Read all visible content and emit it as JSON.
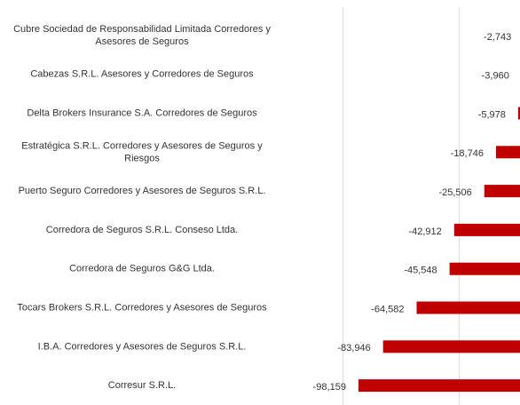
{
  "chart_data": {
    "type": "bar",
    "orientation": "horizontal",
    "categories": [
      "Cubre Sociedad de Responsabilidad Limitada Corredores y Asesores de Seguros",
      "Cabezas S.R.L. Asesores y Corredores de Seguros",
      "Delta Brokers Insurance S.A. Corredores de Seguros",
      "Estratégica S.R.L. Corredores y Asesores de Seguros y Riesgos",
      "Puerto Seguro Corredores y Asesores de Seguros S.R.L.",
      "Corredora de Seguros S.R.L. Conseso Ltda.",
      "Corredora de Seguros G&G Ltda.",
      "Tocars Brokers S.R.L. Corredores y Asesores de Seguros",
      "I.B.A. Corredores y Asesores de Seguros S.R.L.",
      "Corresur S.R.L."
    ],
    "values": [
      -2743,
      -3960,
      -5978,
      -18746,
      -25506,
      -42912,
      -45548,
      -64582,
      -83946,
      -98159
    ],
    "value_labels": [
      "-2,743",
      "-3,960",
      "-5,978",
      "-18,746",
      "-25,506",
      "-42,912",
      "-45,548",
      "-64,582",
      "-83,946",
      "-98,159"
    ],
    "color": "#c00000",
    "xlim": [
      -151400,
      -4900
    ],
    "xticks": [
      -107000,
      -40000
    ],
    "grid": true
  }
}
